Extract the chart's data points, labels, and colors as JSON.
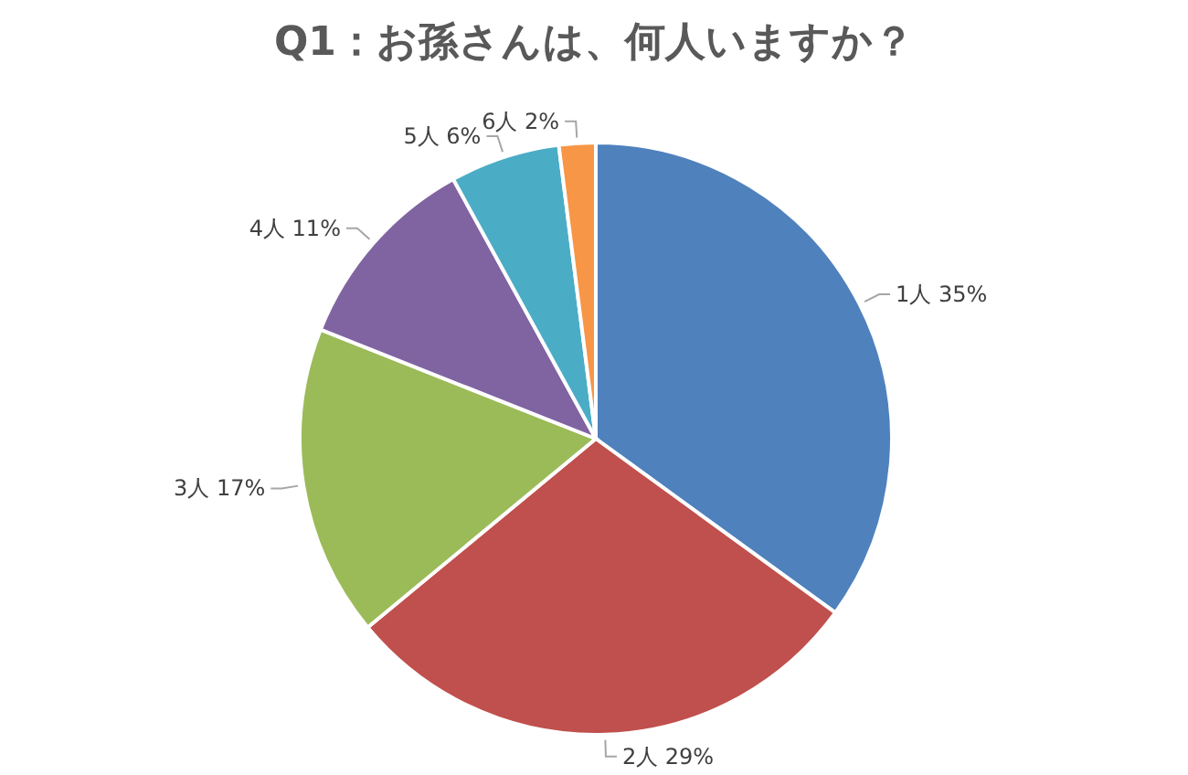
{
  "chart_data": {
    "type": "pie",
    "title": "Q1：お孫さんは、何人いますか？",
    "categories": [
      "1人",
      "2人",
      "3人",
      "4人",
      "5人",
      "6人"
    ],
    "values": [
      35,
      29,
      17,
      11,
      6,
      2
    ],
    "colors": [
      "#4f81bd",
      "#c0504d",
      "#9bbb59",
      "#8064a2",
      "#4bacc6",
      "#f79646"
    ],
    "value_labels": [
      "35%",
      "29%",
      "17%",
      "11%",
      "6%",
      "2%"
    ]
  }
}
